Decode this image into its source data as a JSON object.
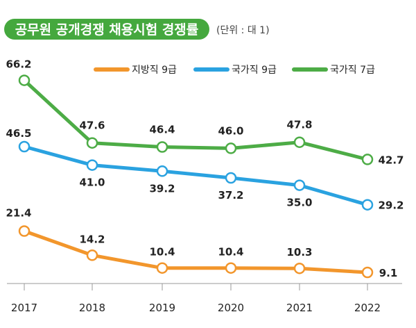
{
  "title": "공무원 공개경쟁 채용시험 경쟁률",
  "unit": "(단위 : 대 1)",
  "colors": {
    "title_bg": "#45a83e",
    "local_9": "#f2962c",
    "national_9": "#2aa2e0",
    "national_7": "#4dac46"
  },
  "chart_data": {
    "type": "line",
    "x": [
      "2017",
      "2018",
      "2019",
      "2020",
      "2021",
      "2022"
    ],
    "series": [
      {
        "name": "지방직 9급",
        "key": "local_9",
        "values": [
          21.4,
          14.2,
          10.4,
          10.4,
          10.3,
          9.1
        ],
        "labels": [
          "21.4",
          "14.2",
          "10.4",
          "10.4",
          "10.3",
          "9.1"
        ]
      },
      {
        "name": "국가직 9급",
        "key": "national_9",
        "values": [
          46.5,
          41.0,
          39.2,
          37.2,
          35.0,
          29.2
        ],
        "labels": [
          "46.5",
          "41.0",
          "39.2",
          "37.2",
          "35.0",
          "29.2"
        ]
      },
      {
        "name": "국가직 7급",
        "key": "national_7",
        "values": [
          66.2,
          47.6,
          46.4,
          46.0,
          47.8,
          42.7
        ],
        "labels": [
          "66.2",
          "47.6",
          "46.4",
          "46.0",
          "47.8",
          "42.7"
        ]
      }
    ],
    "legend_position": "top-right",
    "grid": false
  }
}
